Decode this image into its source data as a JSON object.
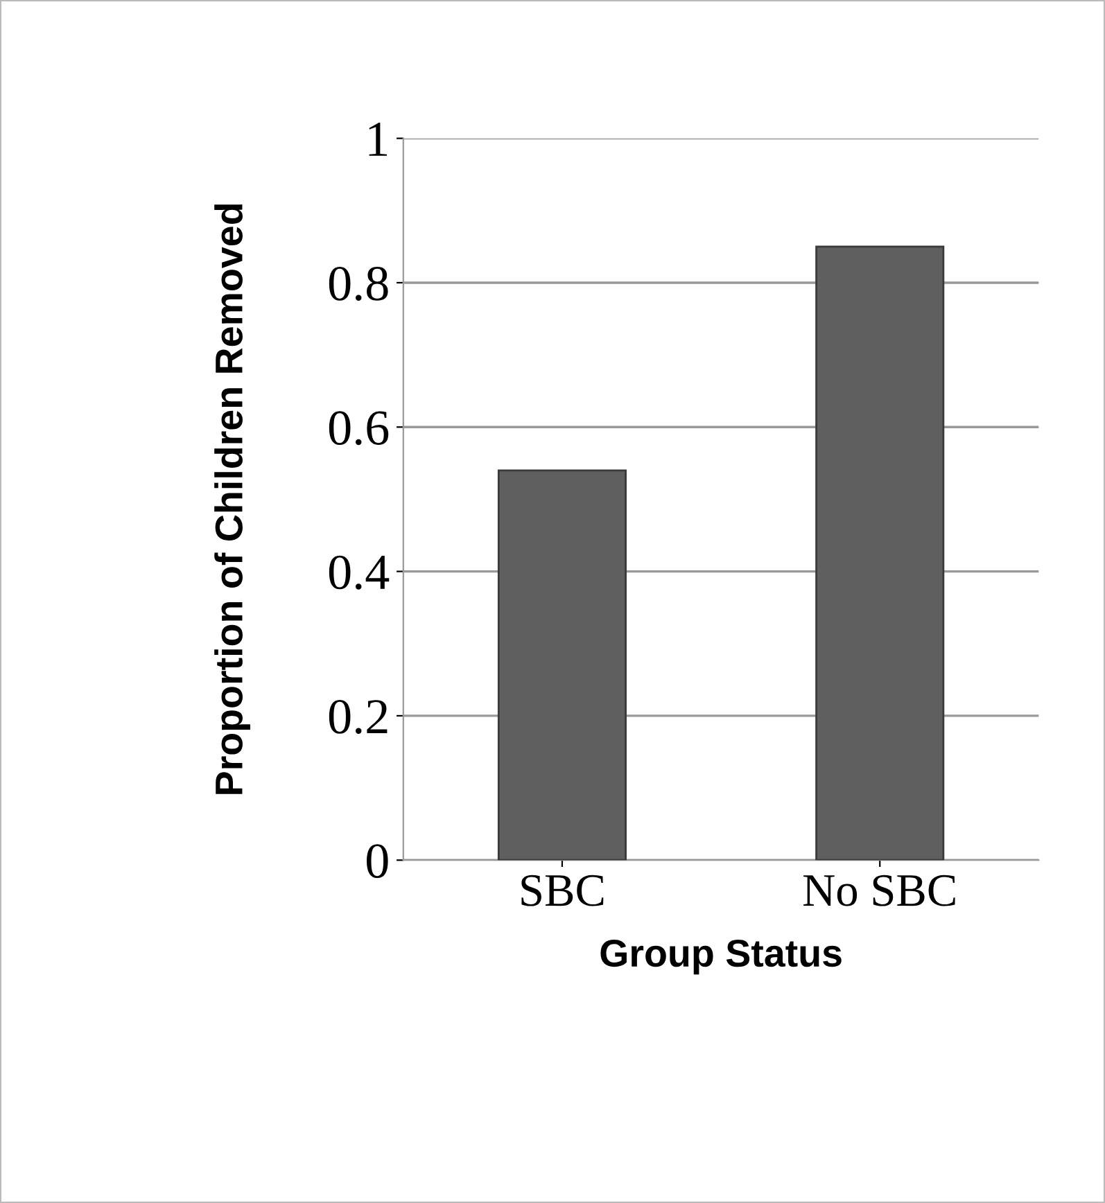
{
  "chart_data": {
    "type": "bar",
    "xlabel": "Group Status",
    "ylabel": "Proportion of Children Removed",
    "categories": [
      "SBC",
      "No SBC"
    ],
    "series": [
      {
        "color": "#5f5f5f",
        "values": [
          0.54,
          0.85
        ]
      }
    ],
    "ylim": [
      0,
      1
    ],
    "yticks": [
      0,
      0.2,
      0.4,
      0.6,
      0.8,
      1
    ],
    "grid": "y"
  }
}
